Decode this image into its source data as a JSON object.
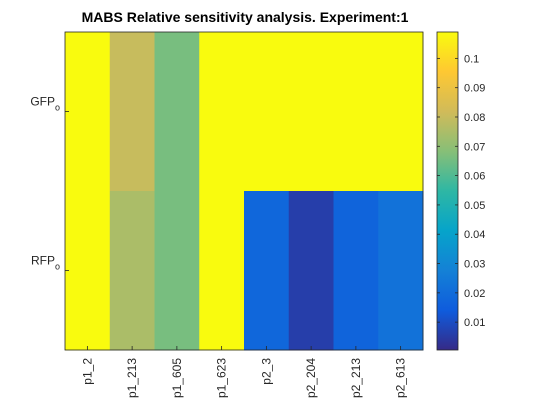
{
  "chart_data": {
    "type": "heatmap",
    "title": "MABS Relative sensitivity analysis. Experiment:1",
    "xlabel": "",
    "ylabel": "",
    "x_categories": [
      "p1_2",
      "p1_213",
      "p1_605",
      "p1_623",
      "p2_3",
      "p2_204",
      "p2_213",
      "p2_613"
    ],
    "y_categories": [
      {
        "base": "GFP",
        "sub": "o"
      },
      {
        "base": "RFP",
        "sub": "o"
      }
    ],
    "values": [
      [
        0.109,
        0.08,
        0.066,
        0.109,
        0.109,
        0.109,
        0.109,
        0.109
      ],
      [
        0.109,
        0.075,
        0.066,
        0.109,
        0.018,
        0.006,
        0.017,
        0.022
      ]
    ],
    "colorbar": {
      "colormap": "parula",
      "range": [
        0.0005,
        0.109
      ],
      "ticks": [
        0.01,
        0.02,
        0.03,
        0.04,
        0.05,
        0.06,
        0.07,
        0.08,
        0.09,
        0.1
      ],
      "tick_labels": [
        "0.01",
        "0.02",
        "0.03",
        "0.04",
        "0.05",
        "0.06",
        "0.07",
        "0.08",
        "0.09",
        "0.1"
      ],
      "placement": "right"
    }
  }
}
